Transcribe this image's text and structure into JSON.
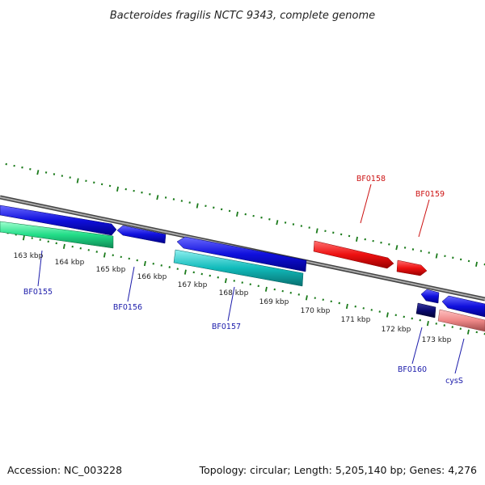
{
  "title": "Bacteroides fragilis NCTC 9343, complete genome",
  "footer": {
    "accession": "Accession: NC_003228",
    "summary": "Topology: circular; Length: 5,205,140 bp; Genes: 4,276"
  },
  "scale_ticks": [
    {
      "id": "163",
      "label": "163 kbp"
    },
    {
      "id": "164",
      "label": "164 kbp"
    },
    {
      "id": "165",
      "label": "165 kbp"
    },
    {
      "id": "166",
      "label": "166 kbp"
    },
    {
      "id": "167",
      "label": "167 kbp"
    },
    {
      "id": "168",
      "label": "168 kbp"
    },
    {
      "id": "169",
      "label": "169 kbp"
    },
    {
      "id": "170",
      "label": "170 kbp"
    },
    {
      "id": "171",
      "label": "171 kbp"
    },
    {
      "id": "172",
      "label": "172 kbp"
    },
    {
      "id": "173",
      "label": "173 kbp"
    }
  ],
  "genes": [
    {
      "name": "BF0155",
      "strand": "forward",
      "color": "#1010dd"
    },
    {
      "name": "BF0156",
      "strand": "reverse",
      "color": "#1010dd"
    },
    {
      "name": "BF0157",
      "strand": "reverse",
      "color": "#1010dd"
    },
    {
      "name": "BF0158",
      "strand": "forward",
      "color": "#ee1111"
    },
    {
      "name": "BF0159",
      "strand": "forward",
      "color": "#ee1111"
    },
    {
      "name": "BF0160",
      "strand": "reverse",
      "color": "#0a0a70"
    },
    {
      "name": "cysS",
      "strand": "reverse",
      "color": "#1010dd"
    }
  ],
  "colors": {
    "backbone": "#888888",
    "tick_green": "#1a7a1a",
    "cds_blue": "#1010dd",
    "cds_red": "#ee1111",
    "cds_dark_navy": "#0a0a70",
    "cds_mint": "#22dd88",
    "cds_cyan": "#11bbbb",
    "cds_pink": "#ee8888",
    "label_blue": "#1a1aaa",
    "label_red": "#cc1111"
  }
}
